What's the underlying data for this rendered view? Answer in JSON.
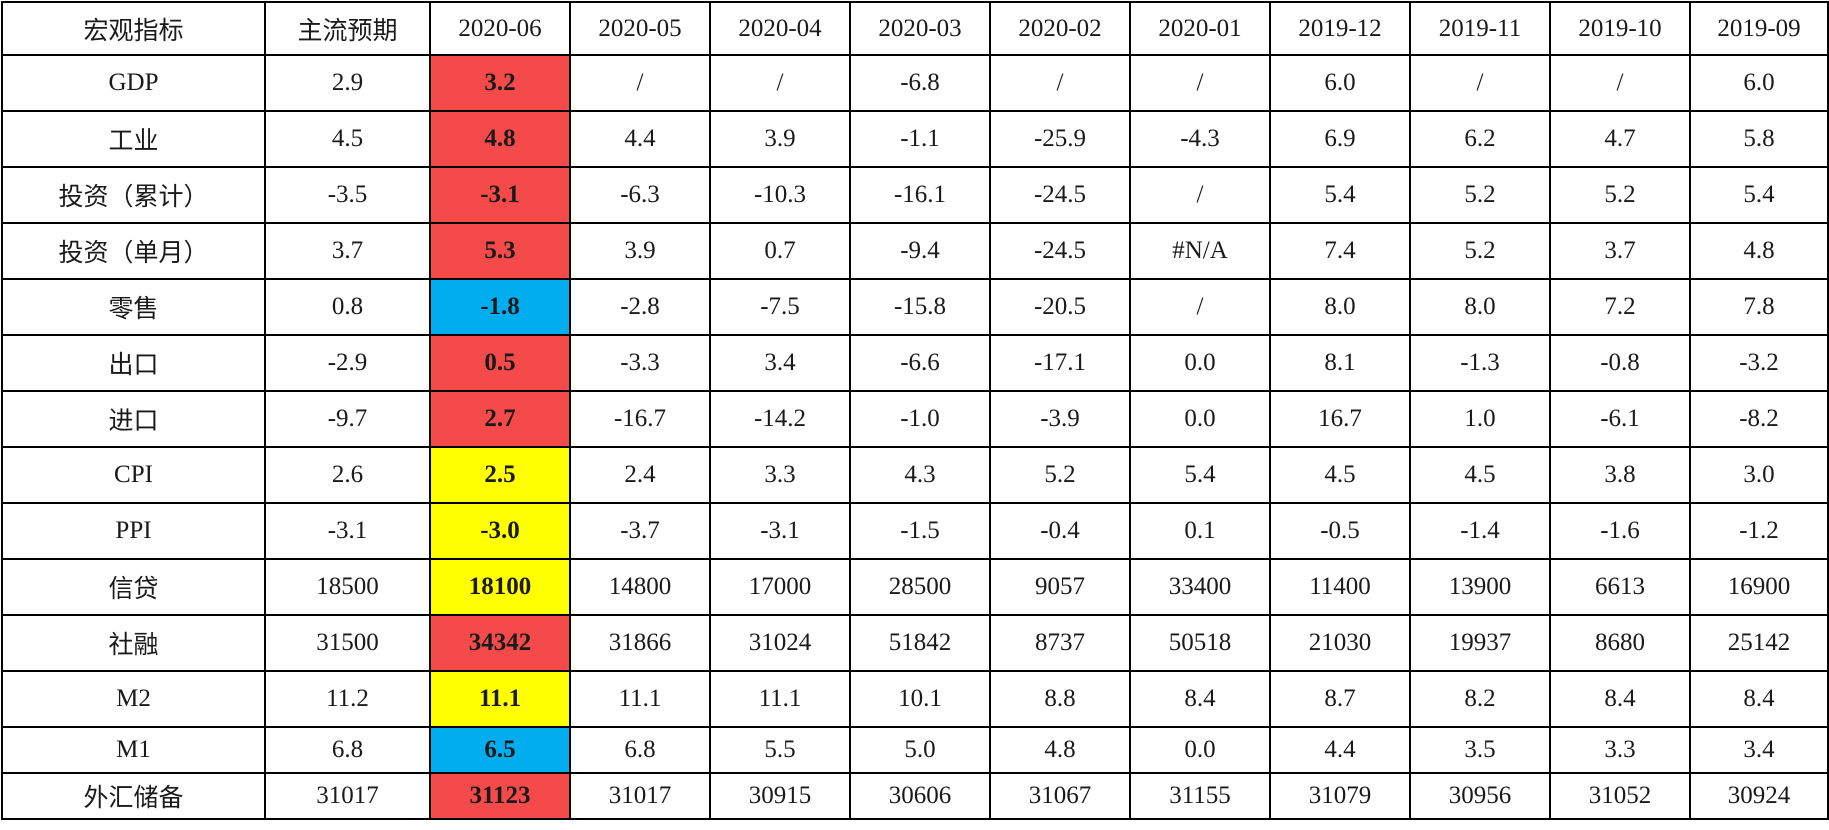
{
  "colors": {
    "red": "#f54a4a",
    "blue": "#00aeef",
    "yellow": "#ffff00",
    "border": "#000000",
    "text": "#1a1a1a"
  },
  "headers": [
    "宏观指标",
    "主流预期",
    "2020-06",
    "2020-05",
    "2020-04",
    "2020-03",
    "2020-02",
    "2020-01",
    "2019-12",
    "2019-11",
    "2019-10",
    "2019-09"
  ],
  "rows": [
    {
      "indicator": "GDP",
      "expected": "2.9",
      "current": "3.2",
      "highlight": "red",
      "history": [
        "/",
        "/",
        "-6.8",
        "/",
        "/",
        "6.0",
        "/",
        "/",
        "6.0"
      ]
    },
    {
      "indicator": "工业",
      "expected": "4.5",
      "current": "4.8",
      "highlight": "red",
      "history": [
        "4.4",
        "3.9",
        "-1.1",
        "-25.9",
        "-4.3",
        "6.9",
        "6.2",
        "4.7",
        "5.8"
      ]
    },
    {
      "indicator": "投资（累计）",
      "expected": "-3.5",
      "current": "-3.1",
      "highlight": "red",
      "history": [
        "-6.3",
        "-10.3",
        "-16.1",
        "-24.5",
        "/",
        "5.4",
        "5.2",
        "5.2",
        "5.4"
      ]
    },
    {
      "indicator": "投资（单月）",
      "expected": "3.7",
      "current": "5.3",
      "highlight": "red",
      "history": [
        "3.9",
        "0.7",
        "-9.4",
        "-24.5",
        "#N/A",
        "7.4",
        "5.2",
        "3.7",
        "4.8"
      ]
    },
    {
      "indicator": "零售",
      "expected": "0.8",
      "current": "-1.8",
      "highlight": "blue",
      "history": [
        "-2.8",
        "-7.5",
        "-15.8",
        "-20.5",
        "/",
        "8.0",
        "8.0",
        "7.2",
        "7.8"
      ]
    },
    {
      "indicator": "出口",
      "expected": "-2.9",
      "current": "0.5",
      "highlight": "red",
      "history": [
        "-3.3",
        "3.4",
        "-6.6",
        "-17.1",
        "0.0",
        "8.1",
        "-1.3",
        "-0.8",
        "-3.2"
      ]
    },
    {
      "indicator": "进口",
      "expected": "-9.7",
      "current": "2.7",
      "highlight": "red",
      "history": [
        "-16.7",
        "-14.2",
        "-1.0",
        "-3.9",
        "0.0",
        "16.7",
        "1.0",
        "-6.1",
        "-8.2"
      ]
    },
    {
      "indicator": "CPI",
      "expected": "2.6",
      "current": "2.5",
      "highlight": "yellow",
      "history": [
        "2.4",
        "3.3",
        "4.3",
        "5.2",
        "5.4",
        "4.5",
        "4.5",
        "3.8",
        "3.0"
      ]
    },
    {
      "indicator": "PPI",
      "expected": "-3.1",
      "current": "-3.0",
      "highlight": "yellow",
      "history": [
        "-3.7",
        "-3.1",
        "-1.5",
        "-0.4",
        "0.1",
        "-0.5",
        "-1.4",
        "-1.6",
        "-1.2"
      ]
    },
    {
      "indicator": "信贷",
      "expected": "18500",
      "current": "18100",
      "highlight": "yellow",
      "history": [
        "14800",
        "17000",
        "28500",
        "9057",
        "33400",
        "11400",
        "13900",
        "6613",
        "16900"
      ]
    },
    {
      "indicator": "社融",
      "expected": "31500",
      "current": "34342",
      "highlight": "red",
      "history": [
        "31866",
        "31024",
        "51842",
        "8737",
        "50518",
        "21030",
        "19937",
        "8680",
        "25142"
      ]
    },
    {
      "indicator": "M2",
      "expected": "11.2",
      "current": "11.1",
      "highlight": "yellow",
      "history": [
        "11.1",
        "11.1",
        "10.1",
        "8.8",
        "8.4",
        "8.7",
        "8.2",
        "8.4",
        "8.4"
      ]
    },
    {
      "indicator": "M1",
      "expected": "6.8",
      "current": "6.5",
      "highlight": "blue",
      "history": [
        "6.8",
        "5.5",
        "5.0",
        "4.8",
        "0.0",
        "4.4",
        "3.5",
        "3.3",
        "3.4"
      ]
    },
    {
      "indicator": "外汇储备",
      "expected": "31017",
      "current": "31123",
      "highlight": "red",
      "history": [
        "31017",
        "30915",
        "30606",
        "31067",
        "31155",
        "31079",
        "30956",
        "31052",
        "30924"
      ]
    }
  ]
}
